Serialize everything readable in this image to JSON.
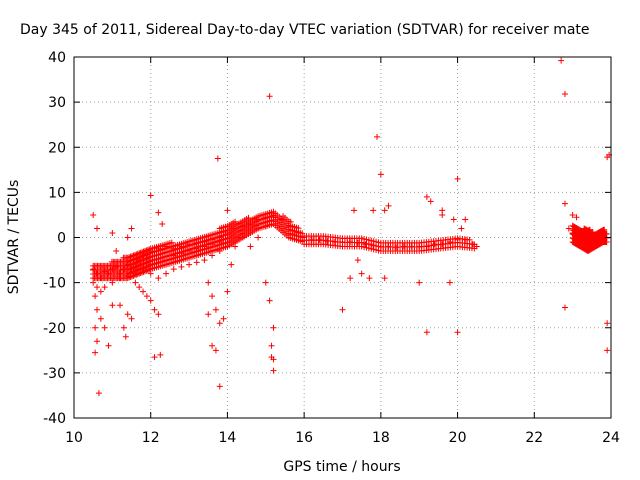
{
  "chart_data": {
    "type": "scatter",
    "title": "Day 345 of 2011, Sidereal Day-to-day VTEC variation (SDTVAR) for receiver mate",
    "xlabel": "GPS time / hours",
    "ylabel": "SDTVAR / TECUs",
    "xlim": [
      10,
      24
    ],
    "ylim": [
      -40,
      40
    ],
    "x_ticks": [
      10,
      12,
      14,
      16,
      18,
      20,
      22,
      24
    ],
    "y_ticks": [
      -40,
      -30,
      -20,
      -10,
      0,
      10,
      20,
      30,
      40
    ],
    "grid": true,
    "marker": "+",
    "series": [
      {
        "name": "SDTVAR",
        "color": "#ff0000",
        "points": [
          [
            10.5,
            -7
          ],
          [
            10.6,
            -8
          ],
          [
            10.7,
            -9
          ],
          [
            10.8,
            -7.5
          ],
          [
            10.9,
            -8
          ],
          [
            11.0,
            -7
          ],
          [
            11.1,
            -6.5
          ],
          [
            11.2,
            -8
          ],
          [
            11.3,
            -7
          ],
          [
            11.4,
            -6
          ],
          [
            11.5,
            -7
          ],
          [
            11.6,
            -6.5
          ],
          [
            11.7,
            -5
          ],
          [
            11.8,
            -4
          ],
          [
            11.9,
            -3.5
          ],
          [
            12.0,
            -3
          ],
          [
            12.2,
            -2.5
          ],
          [
            12.4,
            -2
          ],
          [
            12.6,
            -2.5
          ],
          [
            12.8,
            -2
          ],
          [
            13.0,
            -1.5
          ],
          [
            13.2,
            -1.2
          ],
          [
            13.4,
            -1
          ],
          [
            13.6,
            -0.5
          ],
          [
            13.8,
            0
          ],
          [
            14.0,
            1
          ],
          [
            14.2,
            2
          ],
          [
            14.4,
            2.5
          ],
          [
            14.6,
            3
          ],
          [
            14.8,
            4
          ],
          [
            15.0,
            4.5
          ],
          [
            15.2,
            5
          ],
          [
            15.4,
            4
          ],
          [
            15.6,
            2.5
          ],
          [
            15.8,
            1
          ],
          [
            16.0,
            0
          ],
          [
            16.2,
            -0.5
          ],
          [
            16.4,
            -0.5
          ],
          [
            16.6,
            -0.8
          ],
          [
            16.8,
            -1
          ],
          [
            17.0,
            -1
          ],
          [
            17.2,
            -1
          ],
          [
            17.4,
            -1.2
          ],
          [
            17.6,
            -1.5
          ],
          [
            17.8,
            -1.8
          ],
          [
            18.0,
            -2
          ],
          [
            18.2,
            -2
          ],
          [
            18.4,
            -2.2
          ],
          [
            18.6,
            -2
          ],
          [
            18.8,
            -2
          ],
          [
            19.0,
            -2
          ],
          [
            19.2,
            -2
          ],
          [
            19.4,
            -1.5
          ],
          [
            19.6,
            -1.5
          ],
          [
            19.8,
            -1
          ],
          [
            20.0,
            -0.5
          ],
          [
            20.2,
            -0.5
          ],
          [
            20.4,
            -1.5
          ],
          [
            20.5,
            -2
          ],
          [
            10.5,
            -10
          ],
          [
            10.6,
            -11
          ],
          [
            10.7,
            -12
          ],
          [
            10.8,
            -11
          ],
          [
            11.0,
            -10
          ],
          [
            11.2,
            -9
          ],
          [
            11.4,
            -8.5
          ],
          [
            11.6,
            -8
          ],
          [
            11.8,
            -7
          ],
          [
            12.0,
            -6
          ],
          [
            12.2,
            -5.5
          ],
          [
            12.4,
            -5
          ],
          [
            12.6,
            -4
          ],
          [
            12.8,
            -3.5
          ],
          [
            13.0,
            -3
          ],
          [
            13.2,
            -2.5
          ],
          [
            13.4,
            -2
          ],
          [
            13.6,
            -1.5
          ],
          [
            13.8,
            -1
          ],
          [
            11.6,
            -10
          ],
          [
            11.7,
            -11
          ],
          [
            11.8,
            -12
          ],
          [
            11.9,
            -13
          ],
          [
            12.0,
            -14
          ],
          [
            12.1,
            -16
          ],
          [
            12.2,
            -17
          ],
          [
            12.0,
            -8
          ],
          [
            12.2,
            -9
          ],
          [
            12.4,
            -8
          ],
          [
            12.6,
            -7
          ],
          [
            12.8,
            -6.5
          ],
          [
            13.0,
            -6
          ],
          [
            13.2,
            -5.5
          ],
          [
            13.4,
            -5
          ],
          [
            13.6,
            -4
          ],
          [
            13.8,
            -3
          ],
          [
            14.0,
            -2
          ],
          [
            14.2,
            -1
          ],
          [
            14.4,
            0
          ],
          [
            14.6,
            1
          ],
          [
            14.8,
            2
          ],
          [
            15.0,
            2.5
          ],
          [
            13.5,
            -10
          ],
          [
            13.6,
            -13
          ],
          [
            13.7,
            -16
          ],
          [
            13.8,
            -19
          ],
          [
            13.9,
            -18
          ],
          [
            14.0,
            -12
          ],
          [
            14.1,
            -6
          ],
          [
            14.2,
            -2
          ],
          [
            14.3,
            0
          ],
          [
            14.6,
            -2
          ],
          [
            14.8,
            0
          ],
          [
            15.0,
            -10
          ],
          [
            15.1,
            -14
          ],
          [
            15.2,
            -20
          ],
          [
            15.15,
            -24
          ],
          [
            15.2,
            -27
          ],
          [
            10.5,
            5
          ],
          [
            10.6,
            2
          ],
          [
            10.55,
            -13
          ],
          [
            10.6,
            -16
          ],
          [
            10.55,
            -20
          ],
          [
            10.6,
            -23
          ],
          [
            10.55,
            -25.5
          ],
          [
            10.65,
            -34.5
          ],
          [
            10.7,
            -18
          ],
          [
            10.8,
            -20
          ],
          [
            10.9,
            -24
          ],
          [
            11.0,
            -15
          ],
          [
            11.0,
            1
          ],
          [
            11.1,
            -3
          ],
          [
            11.2,
            -15
          ],
          [
            11.3,
            -20
          ],
          [
            11.35,
            -22
          ],
          [
            11.4,
            -17
          ],
          [
            11.5,
            -18
          ],
          [
            11.5,
            2
          ],
          [
            11.4,
            0
          ],
          [
            12.0,
            9.3
          ],
          [
            12.2,
            5.5
          ],
          [
            12.3,
            3
          ],
          [
            12.1,
            -26.5
          ],
          [
            12.25,
            -26
          ],
          [
            13.5,
            -17
          ],
          [
            13.6,
            -24
          ],
          [
            13.7,
            -25
          ],
          [
            13.75,
            17.5
          ],
          [
            14.0,
            6
          ],
          [
            13.8,
            -33
          ],
          [
            15.1,
            31.3
          ],
          [
            15.2,
            -29.5
          ],
          [
            15.15,
            -26.5
          ],
          [
            17.0,
            -16
          ],
          [
            17.2,
            -9
          ],
          [
            17.3,
            6
          ],
          [
            17.4,
            -5
          ],
          [
            17.5,
            -8
          ],
          [
            17.7,
            -9
          ],
          [
            17.8,
            6
          ],
          [
            17.9,
            22.3
          ],
          [
            18.0,
            14
          ],
          [
            18.1,
            -9
          ],
          [
            18.1,
            6
          ],
          [
            18.2,
            7
          ],
          [
            19.0,
            -10
          ],
          [
            19.2,
            -21
          ],
          [
            19.2,
            9
          ],
          [
            19.3,
            8
          ],
          [
            19.6,
            6
          ],
          [
            19.6,
            5
          ],
          [
            19.8,
            -10
          ],
          [
            19.9,
            4
          ],
          [
            20.0,
            13
          ],
          [
            20.0,
            -21
          ],
          [
            20.1,
            2
          ],
          [
            20.2,
            4
          ],
          [
            22.7,
            39.2
          ],
          [
            22.8,
            31.8
          ],
          [
            22.8,
            7.5
          ],
          [
            22.8,
            -15.5
          ],
          [
            22.9,
            2
          ],
          [
            23.0,
            1
          ],
          [
            23.2,
            0
          ],
          [
            23.4,
            -1
          ],
          [
            23.6,
            0
          ],
          [
            23.8,
            1
          ],
          [
            23.9,
            -19
          ],
          [
            23.9,
            -25
          ],
          [
            23.95,
            18.3
          ],
          [
            23.9,
            17.8
          ],
          [
            23.1,
            4.5
          ],
          [
            23.0,
            5
          ]
        ],
        "bands": [
          {
            "x": [
              10.5,
              10.8,
              11.1,
              11.4,
              11.7,
              12.0,
              12.4,
              12.8,
              13.2,
              13.6,
              14.0,
              14.4,
              14.8,
              15.2,
              15.6,
              16.0
            ],
            "low": [
              -9,
              -9,
              -9,
              -9,
              -8,
              -7,
              -6,
              -5,
              -4,
              -3,
              -2,
              0,
              2,
              3,
              0,
              -1
            ],
            "high": [
              -6,
              -6,
              -5,
              -4,
              -3,
              -2,
              -1,
              -1,
              0,
              1,
              3,
              4,
              5,
              6,
              4,
              1
            ]
          },
          {
            "x": [
              16.0,
              16.5,
              17.0,
              17.5,
              18.0,
              18.5,
              19.0,
              19.5,
              20.0,
              20.5
            ],
            "low": [
              -1.5,
              -1.5,
              -2,
              -2,
              -3,
              -3,
              -3,
              -2.5,
              -2,
              -2.5
            ],
            "high": [
              1,
              0.5,
              0,
              0,
              -1,
              -1,
              -1,
              0,
              0.5,
              -1
            ]
          },
          {
            "x": [
              23.0,
              23.2,
              23.4,
              23.6,
              23.8,
              23.9
            ],
            "low": [
              -1,
              -2,
              -3,
              -2,
              -1,
              -1
            ],
            "high": [
              3,
              2,
              2,
              1,
              2,
              1
            ]
          }
        ]
      }
    ]
  }
}
